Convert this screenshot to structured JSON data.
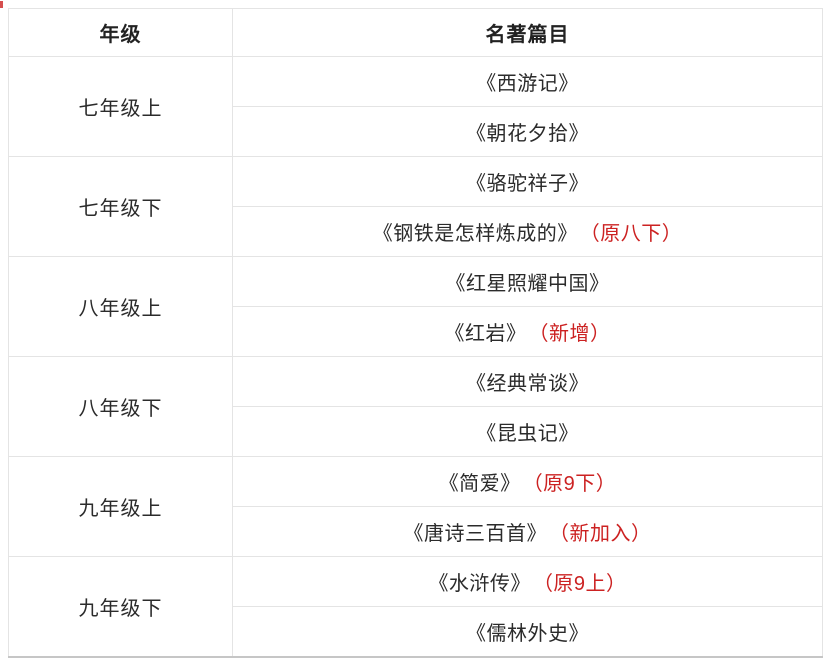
{
  "page": {
    "background": "#ffffff"
  },
  "table": {
    "headers": {
      "grade": "年级",
      "titles": "名著篇目"
    },
    "colors": {
      "text": "#2b2b2b",
      "note_red": "#cc2222",
      "inner_border": "#e4e4e4",
      "bottom_border": "#c6c6c6"
    },
    "groups": [
      {
        "grade": "七年级上",
        "books": [
          {
            "title": "《西游记》",
            "note": ""
          },
          {
            "title": "《朝花夕拾》",
            "note": ""
          }
        ]
      },
      {
        "grade": "七年级下",
        "books": [
          {
            "title": "《骆驼祥子》",
            "note": ""
          },
          {
            "title": "《钢铁是怎样炼成的》",
            "note": "（原八下）"
          }
        ]
      },
      {
        "grade": "八年级上",
        "books": [
          {
            "title": "《红星照耀中国》",
            "note": ""
          },
          {
            "title": "《红岩》",
            "note": "（新增）"
          }
        ]
      },
      {
        "grade": "八年级下",
        "books": [
          {
            "title": "《经典常谈》",
            "note": ""
          },
          {
            "title": "《昆虫记》",
            "note": ""
          }
        ]
      },
      {
        "grade": "九年级上",
        "books": [
          {
            "title": "《简爱》",
            "note": "（原9下）"
          },
          {
            "title": "《唐诗三百首》",
            "note": "（新加入）"
          }
        ]
      },
      {
        "grade": "九年级下",
        "books": [
          {
            "title": "《水浒传》",
            "note": "（原9上）"
          },
          {
            "title": "《儒林外史》",
            "note": ""
          }
        ]
      }
    ]
  }
}
